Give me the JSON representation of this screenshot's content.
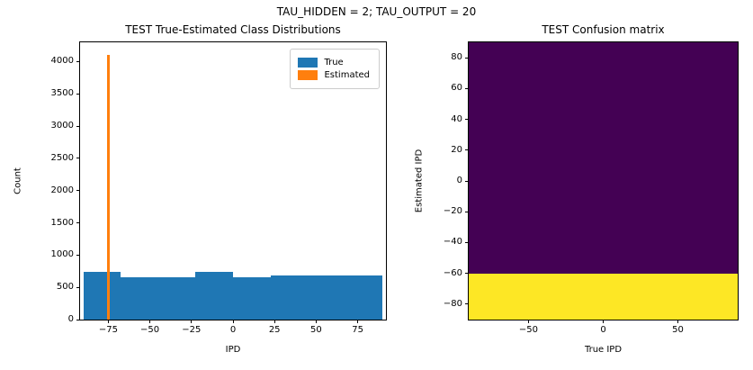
{
  "figure": {
    "suptitle": "TAU_HIDDEN = 2; TAU_OUTPUT = 20"
  },
  "chart_data": [
    {
      "type": "bar",
      "title": "TEST True-Estimated Class Distributions",
      "xlabel": "IPD",
      "ylabel": "Count",
      "xlim": [
        -92,
        92
      ],
      "ylim": [
        0,
        4300
      ],
      "xticks": [
        -75,
        -50,
        -25,
        0,
        25,
        50,
        75
      ],
      "yticks": [
        0,
        500,
        1000,
        1500,
        2000,
        2500,
        3000,
        3500,
        4000
      ],
      "legend": [
        {
          "label": "True",
          "color": "#1f77b4"
        },
        {
          "label": "Estimated",
          "color": "#ff7f0e"
        }
      ],
      "series": [
        {
          "name": "True",
          "color": "#1f77b4",
          "bins": [
            {
              "from": -90.0,
              "to": -67.5,
              "count": 735
            },
            {
              "from": -67.5,
              "to": -45.0,
              "count": 655
            },
            {
              "from": -45.0,
              "to": -22.5,
              "count": 655
            },
            {
              "from": -22.5,
              "to": 0.0,
              "count": 735
            },
            {
              "from": 0.0,
              "to": 22.5,
              "count": 650
            },
            {
              "from": 22.5,
              "to": 45.0,
              "count": 685
            },
            {
              "from": 45.0,
              "to": 67.5,
              "count": 685
            },
            {
              "from": 67.5,
              "to": 90.0,
              "count": 685
            }
          ]
        },
        {
          "name": "Estimated",
          "color": "#ff7f0e",
          "bins": [
            {
              "from": -76.0,
              "to": -74.2,
              "count": 4100
            }
          ]
        }
      ]
    },
    {
      "type": "heatmap",
      "title": "TEST Confusion matrix",
      "xlabel": "True IPD",
      "ylabel": "Estimated IPD",
      "xlim": [
        -90,
        90
      ],
      "ylim": [
        -90,
        90
      ],
      "xticks": [
        -50,
        0,
        50
      ],
      "yticks": [
        -80,
        -60,
        -40,
        -20,
        0,
        20,
        40,
        60,
        80
      ],
      "colormap": "viridis",
      "bands": [
        {
          "y_from": -60,
          "y_to": 90,
          "color": "#440154",
          "value": "low"
        },
        {
          "y_from": -90,
          "y_to": -60,
          "color": "#fde725",
          "value": "high"
        }
      ]
    }
  ]
}
